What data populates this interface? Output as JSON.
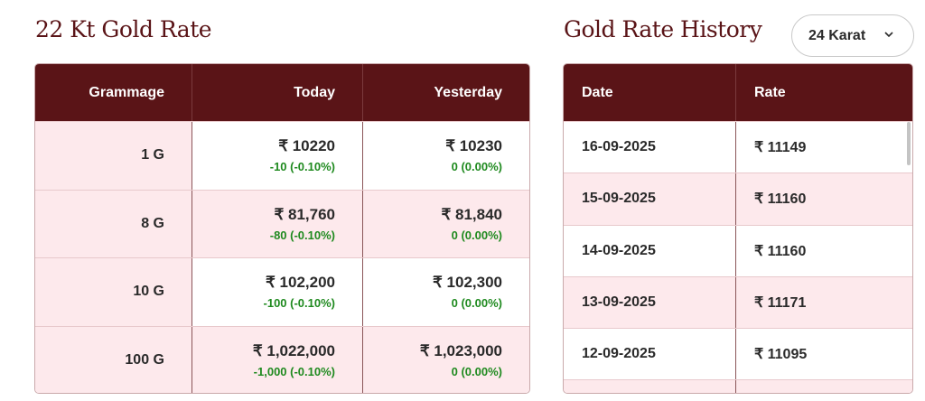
{
  "rates": {
    "title": "22 Kt Gold Rate",
    "headers": {
      "grammage": "Grammage",
      "today": "Today",
      "yesterday": "Yesterday"
    },
    "rows": [
      {
        "gram": "1 G",
        "today": "₹ 10220",
        "today_change": "-10 (-0.10%)",
        "yesterday": "₹ 10230",
        "yesterday_change": "0 (0.00%)"
      },
      {
        "gram": "8 G",
        "today": "₹ 81,760",
        "today_change": "-80 (-0.10%)",
        "yesterday": "₹ 81,840",
        "yesterday_change": "0 (0.00%)"
      },
      {
        "gram": "10 G",
        "today": "₹ 102,200",
        "today_change": "-100 (-0.10%)",
        "yesterday": "₹ 102,300",
        "yesterday_change": "0 (0.00%)"
      },
      {
        "gram": "100 G",
        "today": "₹ 1,022,000",
        "today_change": "-1,000 (-0.10%)",
        "yesterday": "₹ 1,023,000",
        "yesterday_change": "0 (0.00%)"
      }
    ]
  },
  "history": {
    "title": "Gold Rate History",
    "karat_select": {
      "value": "24 Karat",
      "icon": "chevron-down-icon"
    },
    "headers": {
      "date": "Date",
      "rate": "Rate"
    },
    "rows": [
      {
        "date": "16-09-2025",
        "rate": "₹ 11149"
      },
      {
        "date": "15-09-2025",
        "rate": "₹ 11160"
      },
      {
        "date": "14-09-2025",
        "rate": "₹ 11160"
      },
      {
        "date": "13-09-2025",
        "rate": "₹ 11171"
      },
      {
        "date": "12-09-2025",
        "rate": "₹ 11095"
      }
    ]
  },
  "colors": {
    "header_bg": "#5a1417",
    "row_tint": "#fde9ec",
    "change_green": "#1f8a1f",
    "title": "#5a1417"
  }
}
